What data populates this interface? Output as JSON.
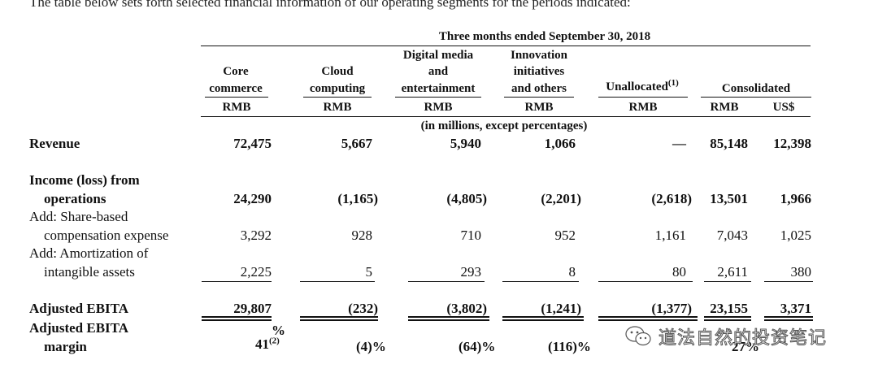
{
  "intro": "The table below sets forth selected financial information of our operating segments for the periods indicated:",
  "period": "Three months ended September 30, 2018",
  "columns": {
    "core": [
      "Core",
      "commerce"
    ],
    "cloud": [
      "Cloud",
      "computing"
    ],
    "digital": [
      "Digital media",
      "and",
      "entertainment"
    ],
    "innov": [
      "Innovation",
      "initiatives",
      "and others"
    ],
    "unalloc": "Unallocated",
    "unalloc_note": "(1)",
    "consolidated": "Consolidated"
  },
  "currencies": [
    "RMB",
    "RMB",
    "RMB",
    "RMB",
    "RMB",
    "RMB",
    "US$"
  ],
  "units_note": "(in millions, except percentages)",
  "rows": {
    "revenue": {
      "label": "Revenue",
      "values": [
        "72,475",
        "5,667",
        "5,940",
        "1,066",
        "—",
        "85,148",
        "12,398"
      ]
    },
    "income": {
      "label_1": "Income (loss) from",
      "label_2": "operations",
      "values": [
        "24,290",
        "(1,165)",
        "(4,805)",
        "(2,201)",
        "(2,618)",
        "13,501",
        "1,966"
      ]
    },
    "sbc": {
      "label_1": "Add: Share-based",
      "label_2": "compensation expense",
      "values": [
        "3,292",
        "928",
        "710",
        "952",
        "1,161",
        "7,043",
        "1,025"
      ]
    },
    "amort": {
      "label_1": "Add: Amortization of",
      "label_2": "intangible assets",
      "values": [
        "2,225",
        "5",
        "293",
        "8",
        "80",
        "2,611",
        "380"
      ]
    },
    "ebita": {
      "label": "Adjusted EBITA",
      "values": [
        "29,807",
        "(232)",
        "(3,802)",
        "(1,241)",
        "(1,377)",
        "23,155",
        "3,371"
      ]
    },
    "margin": {
      "label_1": "Adjusted EBITA",
      "label_2": "margin",
      "core_pct": "%",
      "core_value": "41",
      "core_note": "(2)",
      "values": [
        "(4)%",
        "(64)%",
        "(116)%",
        "27%"
      ]
    }
  },
  "watermark": "道法自然的投资笔记"
}
